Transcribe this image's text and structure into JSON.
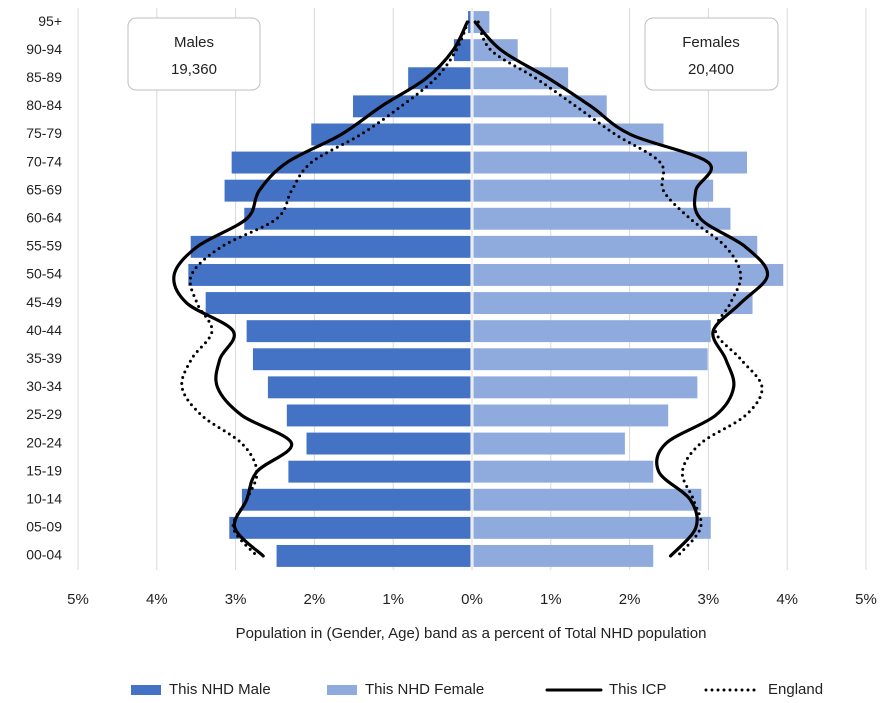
{
  "chart_data": {
    "type": "bar",
    "x_label": "Population in (Gender, Age) band as a percent of Total NHD population",
    "categories": [
      "95+",
      "90-94",
      "85-89",
      "80-84",
      "75-79",
      "70-74",
      "65-69",
      "60-64",
      "55-59",
      "50-54",
      "45-49",
      "40-44",
      "35-39",
      "30-34",
      "25-29",
      "20-24",
      "15-19",
      "10-14",
      "05-09",
      "00-04"
    ],
    "xlim": [
      -5,
      5
    ],
    "xticks": [
      {
        "value": -5,
        "label": "5%"
      },
      {
        "value": -4,
        "label": "4%"
      },
      {
        "value": -3,
        "label": "3%"
      },
      {
        "value": -2,
        "label": "2%"
      },
      {
        "value": -1,
        "label": "1%"
      },
      {
        "value": 0,
        "label": "0%"
      },
      {
        "value": 1,
        "label": "1%"
      },
      {
        "value": 2,
        "label": "2%"
      },
      {
        "value": 3,
        "label": "3%"
      },
      {
        "value": 4,
        "label": "4%"
      },
      {
        "value": 5,
        "label": "5%"
      }
    ],
    "grid": true,
    "annotations": [
      {
        "label": "Males",
        "total": "19,360"
      },
      {
        "label": "Females",
        "total": "20,400"
      }
    ],
    "series": [
      {
        "name": "This NHD Male",
        "color": "#4472c4",
        "style": "bar",
        "values": [
          -0.05,
          -0.23,
          -0.81,
          -1.51,
          -2.04,
          -3.05,
          -3.14,
          -2.89,
          -3.57,
          -3.6,
          -3.38,
          -2.86,
          -2.78,
          -2.59,
          -2.35,
          -2.1,
          -2.33,
          -2.92,
          -3.08,
          -2.48
        ]
      },
      {
        "name": "This NHD Female",
        "color": "#8faadc",
        "style": "bar",
        "values": [
          0.22,
          0.58,
          1.22,
          1.71,
          2.43,
          3.49,
          3.06,
          3.28,
          3.62,
          3.95,
          3.56,
          3.03,
          2.99,
          2.86,
          2.49,
          1.94,
          2.3,
          2.91,
          3.03,
          2.3
        ]
      },
      {
        "name": "This ICP",
        "color": "#000000",
        "style": "solid",
        "male_values": [
          -0.06,
          -0.24,
          -0.58,
          -1.15,
          -1.66,
          -2.35,
          -2.7,
          -2.86,
          -3.49,
          -3.78,
          -3.62,
          -3.03,
          -3.2,
          -3.23,
          -2.92,
          -2.29,
          -2.73,
          -2.86,
          -3.01,
          -2.65
        ],
        "female_values": [
          0.04,
          0.37,
          0.97,
          1.51,
          2.01,
          3.0,
          2.84,
          2.9,
          3.47,
          3.75,
          3.41,
          3.06,
          3.22,
          3.32,
          3.09,
          2.46,
          2.37,
          2.77,
          2.84,
          2.52
        ]
      },
      {
        "name": "England",
        "color": "#000000",
        "style": "dotted",
        "male_values": [
          -0.05,
          -0.2,
          -0.46,
          -0.9,
          -1.41,
          -2.04,
          -2.29,
          -2.48,
          -3.18,
          -3.56,
          -3.49,
          -3.3,
          -3.56,
          -3.68,
          -3.43,
          -2.92,
          -2.73,
          -2.86,
          -3.03,
          -2.73
        ],
        "female_values": [
          0.08,
          0.24,
          0.81,
          1.32,
          1.82,
          2.39,
          2.43,
          2.77,
          3.22,
          3.41,
          3.28,
          3.09,
          3.41,
          3.68,
          3.47,
          2.9,
          2.67,
          2.81,
          2.9,
          2.61
        ]
      }
    ]
  }
}
